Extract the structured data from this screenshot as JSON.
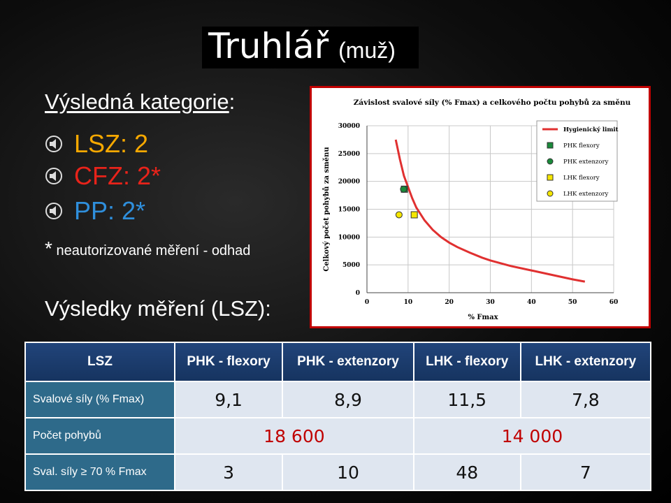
{
  "title": {
    "main": "Truhlář",
    "sub": "(muž)"
  },
  "result_heading": "Výsledná kategorie",
  "result_colon": ":",
  "results": [
    {
      "text": "LSZ: 2",
      "color": "#f6a800"
    },
    {
      "text": "CFZ: 2*",
      "color": "#e8231a"
    },
    {
      "text": "PP: 2*",
      "color": "#2f8fdc"
    }
  ],
  "note": {
    "star": "*",
    "text": "neautorizované měření - odhad"
  },
  "measure_heading": "Výsledky měření (LSZ)",
  "measure_colon": ":",
  "chart_data": {
    "type": "scatter",
    "title": "Závislost svalové síly (% Fmax) a celkového počtu pohybů za směnu",
    "xlabel": "% Fmax",
    "ylabel": "Celkový počet pohybů za směnu",
    "xlim": [
      0,
      60
    ],
    "ylim": [
      0,
      30000
    ],
    "xticks": [
      0,
      10,
      20,
      30,
      40,
      50,
      60
    ],
    "yticks": [
      0,
      5000,
      10000,
      15000,
      20000,
      25000,
      30000
    ],
    "grid": true,
    "legend_position": "top-right",
    "series": [
      {
        "name": "Hygienický limit",
        "type": "line",
        "color": "#e03030",
        "x": [
          7,
          8,
          9,
          10,
          11,
          12,
          14,
          16,
          18,
          20,
          22,
          25,
          28,
          30,
          35,
          40,
          45,
          50,
          53
        ],
        "y": [
          27500,
          24000,
          21000,
          19000,
          17000,
          15300,
          13000,
          11300,
          10000,
          9000,
          8200,
          7200,
          6300,
          5800,
          4800,
          4000,
          3200,
          2400,
          2000
        ]
      },
      {
        "name": "PHK flexory",
        "type": "point",
        "marker": "square",
        "color": "#1a8a3a",
        "x": [
          9.1
        ],
        "y": [
          18600
        ]
      },
      {
        "name": "PHK extenzory",
        "type": "point",
        "marker": "circle",
        "color": "#1a8a3a",
        "x": [
          8.9
        ],
        "y": [
          18600
        ]
      },
      {
        "name": "LHK flexory",
        "type": "point",
        "marker": "square",
        "color": "#f5e600",
        "x": [
          11.5
        ],
        "y": [
          14000
        ]
      },
      {
        "name": "LHK extenzory",
        "type": "point",
        "marker": "circle",
        "color": "#f5e600",
        "x": [
          7.8
        ],
        "y": [
          14000
        ]
      }
    ]
  },
  "table": {
    "headers": [
      "LSZ",
      "PHK - flexory",
      "PHK - extenzory",
      "LHK - flexory",
      "LHK - extenzory"
    ],
    "rows": [
      {
        "label": "Svalové síly (% Fmax)",
        "values": [
          "9,1",
          "8,9",
          "11,5",
          "7,8"
        ]
      },
      {
        "label": "Počet pohybů",
        "values": [
          "18 600",
          "14 000"
        ]
      },
      {
        "label": "Sval. síly ≥ 70 % Fmax",
        "values": [
          "3",
          "10",
          "48",
          "7"
        ]
      }
    ]
  }
}
